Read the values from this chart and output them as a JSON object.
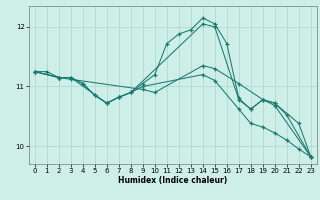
{
  "xlabel": "Humidex (Indice chaleur)",
  "bg_color": "#ceeee8",
  "line_color": "#1a7a6e",
  "grid_color": "#aad4cc",
  "xlim": [
    -0.5,
    23.5
  ],
  "ylim": [
    9.7,
    12.35
  ],
  "yticks": [
    10,
    11,
    12
  ],
  "xticks": [
    0,
    1,
    2,
    3,
    4,
    5,
    6,
    7,
    8,
    9,
    10,
    11,
    12,
    13,
    14,
    15,
    16,
    17,
    18,
    19,
    20,
    21,
    22,
    23
  ],
  "lines": [
    {
      "x": [
        0,
        1,
        2,
        3,
        6,
        7,
        8,
        9,
        10,
        11,
        12,
        13,
        14,
        15,
        16,
        17,
        18,
        19,
        20,
        21,
        23
      ],
      "y": [
        11.25,
        11.25,
        11.15,
        11.15,
        10.72,
        10.82,
        10.9,
        11.05,
        11.2,
        11.72,
        11.88,
        11.95,
        12.15,
        12.05,
        11.72,
        10.8,
        10.62,
        10.78,
        10.72,
        10.52,
        9.82
      ]
    },
    {
      "x": [
        0,
        2,
        3,
        4,
        5,
        6,
        7,
        8,
        14,
        15,
        17,
        18,
        19,
        20,
        22,
        23
      ],
      "y": [
        11.25,
        11.15,
        11.15,
        11.05,
        10.85,
        10.72,
        10.82,
        10.9,
        12.05,
        12.0,
        10.78,
        10.62,
        10.78,
        10.72,
        10.38,
        9.82
      ]
    },
    {
      "x": [
        0,
        2,
        3,
        9,
        10,
        14,
        15,
        17,
        19,
        20,
        23
      ],
      "y": [
        11.25,
        11.15,
        11.12,
        10.95,
        10.9,
        11.35,
        11.3,
        11.05,
        10.78,
        10.68,
        9.82
      ]
    },
    {
      "x": [
        0,
        2,
        3,
        4,
        5,
        6,
        7,
        8,
        9,
        14,
        15,
        17,
        18,
        19,
        20,
        21,
        22,
        23
      ],
      "y": [
        11.25,
        11.15,
        11.15,
        11.05,
        10.85,
        10.72,
        10.82,
        10.9,
        11.0,
        11.2,
        11.1,
        10.62,
        10.38,
        10.32,
        10.22,
        10.1,
        9.95,
        9.82
      ]
    }
  ]
}
